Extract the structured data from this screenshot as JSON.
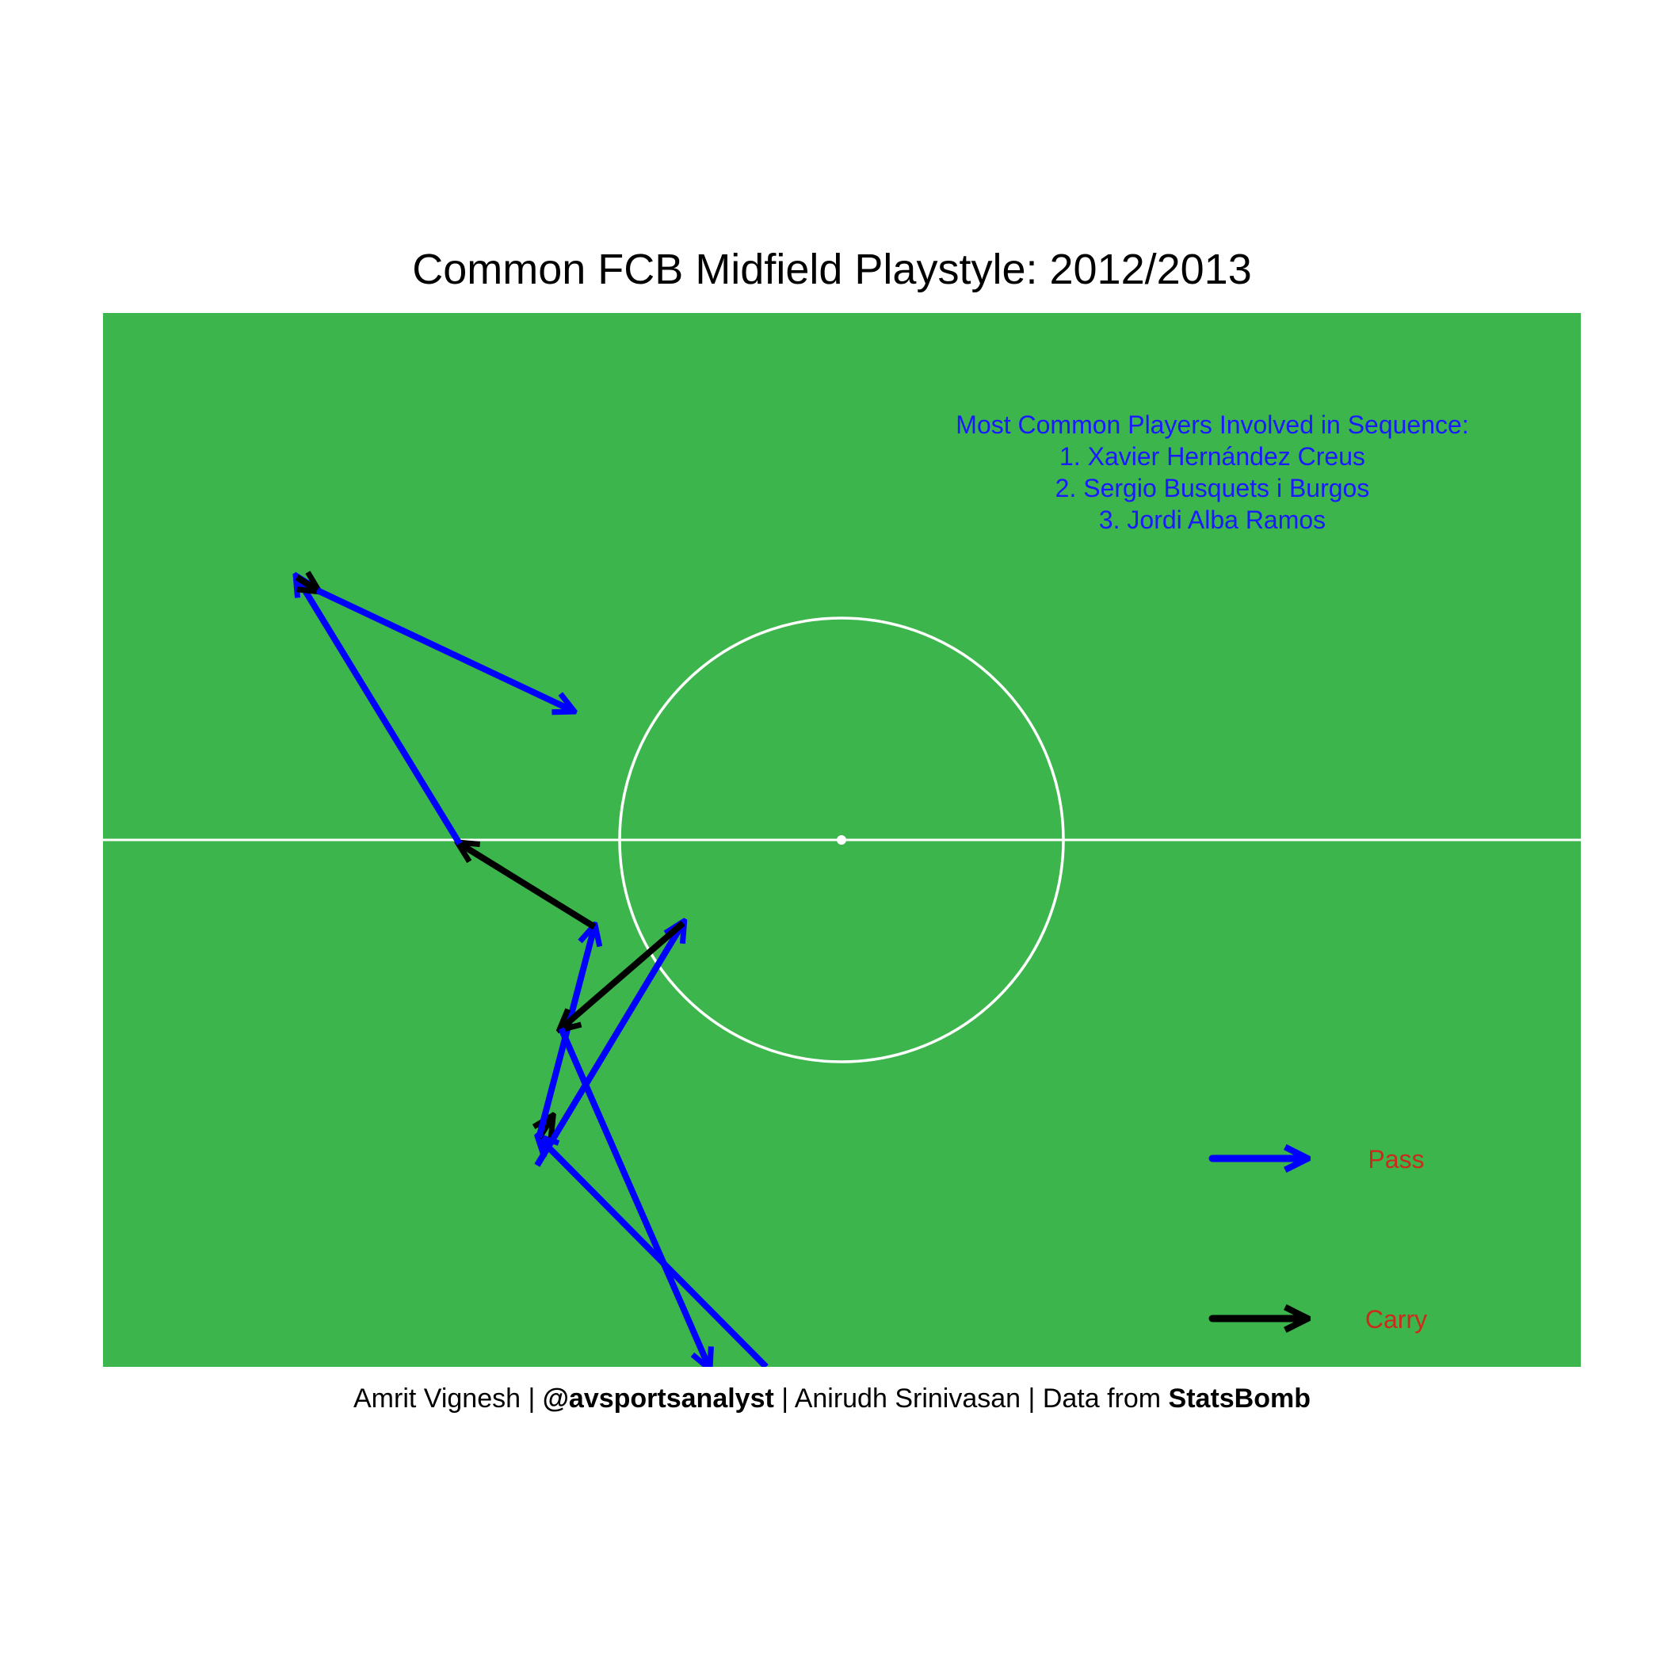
{
  "title": "Common FCB Midfield Playstyle:  2012/2013",
  "caption": {
    "author": "Amrit Vignesh",
    "handle": "@avsportsanalyst",
    "coauthor": "Anirudh Srinivasan",
    "data_prefix": "Data from",
    "source": "StatsBomb",
    "separator": " | "
  },
  "colors": {
    "pitch": "#3cb54c",
    "lines": "#ffffff",
    "pass": "#0000ff",
    "carry": "#000000",
    "annotation": "#1a1aff",
    "legend_text": "#cc2a1a"
  },
  "annotation": {
    "heading": "Most Common Players Involved in Sequence:",
    "players": [
      "1.  Xavier Hernández Creus",
      "2.  Sergio Busquets i Burgos",
      "3.  Jordi Alba Ramos"
    ]
  },
  "legend": {
    "placement": "bottom-right",
    "items": [
      {
        "label": "Pass",
        "type": "pass"
      },
      {
        "label": "Carry",
        "type": "carry"
      }
    ]
  },
  "chart_data": {
    "type": "pitch-event-map",
    "xlim": [
      0,
      80
    ],
    "ylim": [
      30,
      87
    ],
    "x_axis": "pitch width (StatsBomb units)",
    "y_axis": "pitch length (StatsBomb units)",
    "halfway_line_y": 60,
    "center_circle_radius": 12,
    "events": [
      {
        "type": "pass",
        "start": [
          35.9,
          30.0
        ],
        "end": [
          23.6,
          42.4
        ]
      },
      {
        "type": "carry",
        "start": [
          23.6,
          42.4
        ],
        "end": [
          24.3,
          43.5
        ]
      },
      {
        "type": "pass",
        "start": [
          23.6,
          42.4
        ],
        "end": [
          26.6,
          53.8
        ]
      },
      {
        "type": "carry",
        "start": [
          26.6,
          53.8
        ],
        "end": [
          19.3,
          58.3
        ]
      },
      {
        "type": "pass",
        "start": [
          19.3,
          58.3
        ],
        "end": [
          10.5,
          72.7
        ]
      },
      {
        "type": "carry",
        "start": [
          10.5,
          72.7
        ],
        "end": [
          11.6,
          72.0
        ]
      },
      {
        "type": "pass",
        "start": [
          11.6,
          72.0
        ],
        "end": [
          25.4,
          65.5
        ]
      },
      {
        "type": "pass",
        "start": [
          23.5,
          40.9
        ],
        "end": [
          31.4,
          54.0
        ]
      },
      {
        "type": "carry",
        "start": [
          31.4,
          54.0
        ],
        "end": [
          24.8,
          48.3
        ]
      },
      {
        "type": "pass",
        "start": [
          24.8,
          48.3
        ],
        "end": [
          32.8,
          30.0
        ]
      }
    ]
  }
}
